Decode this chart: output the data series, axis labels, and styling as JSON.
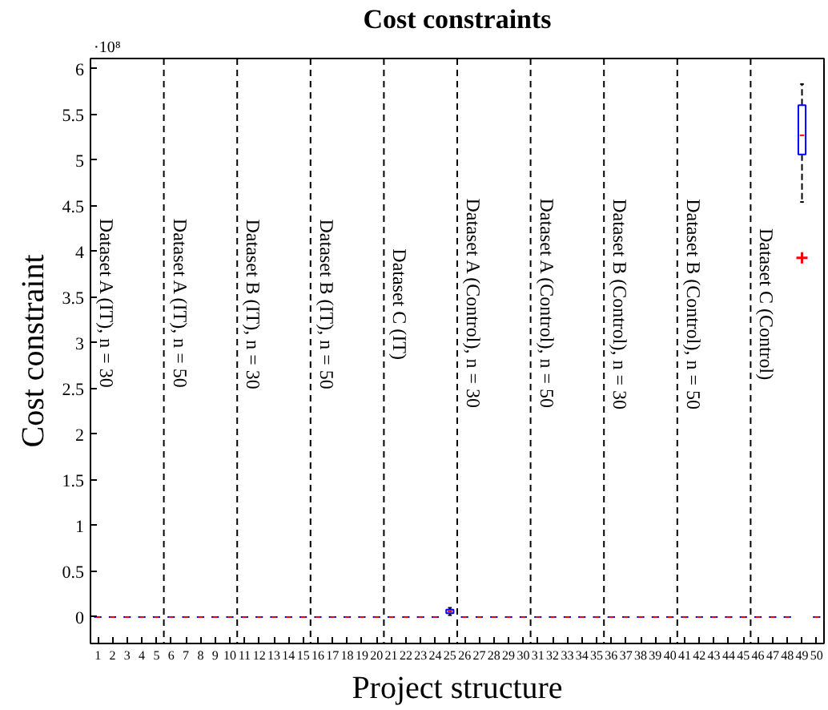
{
  "chart_data": {
    "type": "box",
    "title": "Cost constraints",
    "xlabel": "Project structure",
    "ylabel": "Cost constraint",
    "x": [
      1,
      2,
      3,
      4,
      5,
      6,
      7,
      8,
      9,
      10,
      11,
      12,
      13,
      14,
      15,
      16,
      17,
      18,
      19,
      20,
      21,
      22,
      23,
      24,
      25,
      26,
      27,
      28,
      29,
      30,
      31,
      32,
      33,
      34,
      35,
      36,
      37,
      38,
      39,
      40,
      41,
      42,
      43,
      44,
      45,
      46,
      47,
      48,
      49,
      50
    ],
    "xlim": [
      0.5,
      50.5
    ],
    "xticks": [
      1,
      2,
      3,
      4,
      5,
      6,
      7,
      8,
      9,
      10,
      11,
      12,
      13,
      14,
      15,
      16,
      17,
      18,
      19,
      20,
      21,
      22,
      23,
      24,
      25,
      26,
      27,
      28,
      29,
      30,
      31,
      32,
      33,
      34,
      35,
      36,
      37,
      38,
      39,
      40,
      41,
      42,
      43,
      44,
      45,
      46,
      47,
      48,
      49,
      50
    ],
    "ylim": [
      -0.29,
      6.11
    ],
    "yticks": [
      0,
      0.5,
      1,
      1.5,
      2,
      2.5,
      3,
      3.5,
      4,
      4.5,
      5,
      5.5,
      6
    ],
    "series": [
      {
        "color": "#0000ff",
        "boxes": [
          {
            "low": 0,
            "q1": 0,
            "median": 0,
            "q3": 0,
            "high": 0
          },
          {
            "low": 0,
            "q1": 0,
            "median": 0,
            "q3": 0,
            "high": 0
          },
          {
            "low": 0,
            "q1": 0,
            "median": 0,
            "q3": 0,
            "high": 0
          },
          {
            "low": 0,
            "q1": 0,
            "median": 0,
            "q3": 0,
            "high": 0
          },
          {
            "low": 0,
            "q1": 0,
            "median": 0,
            "q3": 0,
            "high": 0
          },
          {
            "low": 0,
            "q1": 0,
            "median": 0,
            "q3": 0,
            "high": 0
          },
          {
            "low": 0,
            "q1": 0,
            "median": 0,
            "q3": 0,
            "high": 0
          },
          {
            "low": 0,
            "q1": 0,
            "median": 0,
            "q3": 0,
            "high": 0
          },
          {
            "low": 0,
            "q1": 0,
            "median": 0,
            "q3": 0,
            "high": 0
          },
          {
            "low": 0,
            "q1": 0,
            "median": 0,
            "q3": 0,
            "high": 0
          },
          {
            "low": 0,
            "q1": 0,
            "median": 0,
            "q3": 0,
            "high": 0
          },
          {
            "low": 0,
            "q1": 0,
            "median": 0,
            "q3": 0,
            "high": 0
          },
          {
            "low": 0,
            "q1": 0,
            "median": 0,
            "q3": 0,
            "high": 0
          },
          {
            "low": 0,
            "q1": 0,
            "median": 0,
            "q3": 0,
            "high": 0
          },
          {
            "low": 0,
            "q1": 0,
            "median": 0,
            "q3": 0,
            "high": 0
          },
          {
            "low": 0,
            "q1": 0,
            "median": 0,
            "q3": 0,
            "high": 0
          },
          {
            "low": 0,
            "q1": 0,
            "median": 0,
            "q3": 0,
            "high": 0
          },
          {
            "low": 0,
            "q1": 0,
            "median": 0,
            "q3": 0,
            "high": 0
          },
          {
            "low": 0,
            "q1": 0,
            "median": 0,
            "q3": 0,
            "high": 0
          },
          {
            "low": 0,
            "q1": 0,
            "median": 0,
            "q3": 0,
            "high": 0
          },
          {
            "low": 0,
            "q1": 0,
            "median": 0,
            "q3": 0,
            "high": 0
          },
          {
            "low": 0,
            "q1": 0,
            "median": 0,
            "q3": 0,
            "high": 0
          },
          {
            "low": 0,
            "q1": 0,
            "median": 0,
            "q3": 0,
            "high": 0
          },
          {
            "low": 0,
            "q1": 0,
            "median": 0,
            "q3": 0,
            "high": 0
          },
          {
            "low": 0.02,
            "q1": 0.04,
            "median": 0.06,
            "q3": 0.08,
            "high": 0.1
          },
          {
            "low": 0,
            "q1": 0,
            "median": 0,
            "q3": 0,
            "high": 0
          },
          {
            "low": 0,
            "q1": 0,
            "median": 0,
            "q3": 0,
            "high": 0
          },
          {
            "low": 0,
            "q1": 0,
            "median": 0,
            "q3": 0,
            "high": 0
          },
          {
            "low": 0,
            "q1": 0,
            "median": 0,
            "q3": 0,
            "high": 0
          },
          {
            "low": 0,
            "q1": 0,
            "median": 0,
            "q3": 0,
            "high": 0
          },
          {
            "low": 0,
            "q1": 0,
            "median": 0,
            "q3": 0,
            "high": 0
          },
          {
            "low": 0,
            "q1": 0,
            "median": 0,
            "q3": 0,
            "high": 0
          },
          {
            "low": 0,
            "q1": 0,
            "median": 0,
            "q3": 0,
            "high": 0
          },
          {
            "low": 0,
            "q1": 0,
            "median": 0,
            "q3": 0,
            "high": 0
          },
          {
            "low": 0,
            "q1": 0,
            "median": 0,
            "q3": 0,
            "high": 0
          },
          {
            "low": 0,
            "q1": 0,
            "median": 0,
            "q3": 0,
            "high": 0
          },
          {
            "low": 0,
            "q1": 0,
            "median": 0,
            "q3": 0,
            "high": 0
          },
          {
            "low": 0,
            "q1": 0,
            "median": 0,
            "q3": 0,
            "high": 0
          },
          {
            "low": 0,
            "q1": 0,
            "median": 0,
            "q3": 0,
            "high": 0
          },
          {
            "low": 0,
            "q1": 0,
            "median": 0,
            "q3": 0,
            "high": 0
          },
          {
            "low": 0,
            "q1": 0,
            "median": 0,
            "q3": 0,
            "high": 0
          },
          {
            "low": 0,
            "q1": 0,
            "median": 0,
            "q3": 0,
            "high": 0
          },
          {
            "low": 0,
            "q1": 0,
            "median": 0,
            "q3": 0,
            "high": 0
          },
          {
            "low": 0,
            "q1": 0,
            "median": 0,
            "q3": 0,
            "high": 0
          },
          {
            "low": 0,
            "q1": 0,
            "median": 0,
            "q3": 0,
            "high": 0
          },
          {
            "low": 0,
            "q1": 0,
            "median": 0,
            "q3": 0,
            "high": 0
          },
          {
            "low": 0,
            "q1": 0,
            "median": 0,
            "q3": 0,
            "high": 0
          },
          {
            "low": 0,
            "q1": 0,
            "median": 0,
            "q3": 0,
            "high": 0
          },
          {
            "low": 4.54,
            "q1": 5.06,
            "median": 5.27,
            "q3": 5.6,
            "high": 5.83,
            "outliers": [
              3.93
            ]
          },
          {
            "low": 0,
            "q1": 0,
            "median": 0,
            "q3": 0,
            "high": 0
          }
        ]
      }
    ],
    "marker": "cross",
    "ref_lines": [
      {
        "axis": "x",
        "value": 5.5,
        "color": "#000000",
        "line_style": "dashed"
      },
      {
        "axis": "x",
        "value": 10.5,
        "color": "#000000",
        "line_style": "dashed"
      },
      {
        "axis": "x",
        "value": 15.5,
        "color": "#000000",
        "line_style": "dashed"
      },
      {
        "axis": "x",
        "value": 20.5,
        "color": "#000000",
        "line_style": "dashed"
      },
      {
        "axis": "x",
        "value": 25.5,
        "color": "#000000",
        "line_style": "dashed"
      },
      {
        "axis": "x",
        "value": 30.5,
        "color": "#000000",
        "line_style": "dashed"
      },
      {
        "axis": "x",
        "value": 35.5,
        "color": "#000000",
        "line_style": "dashed"
      },
      {
        "axis": "x",
        "value": 40.5,
        "color": "#000000",
        "line_style": "dashed"
      },
      {
        "axis": "x",
        "value": 45.5,
        "color": "#000000",
        "line_style": "dashed"
      }
    ],
    "annotations": [
      "·10⁸",
      "Dataset A (IT), n = 30",
      "Dataset A (IT), n = 50",
      "Dataset B (IT), n = 30",
      "Dataset B (IT), n = 50",
      "Dataset C (IT)",
      "Dataset A (Control), n = 30",
      "Dataset A (Control), n = 50",
      "Dataset B (Control), n = 30",
      "Dataset B (Control), n = 50",
      "Dataset C (Control)"
    ]
  }
}
